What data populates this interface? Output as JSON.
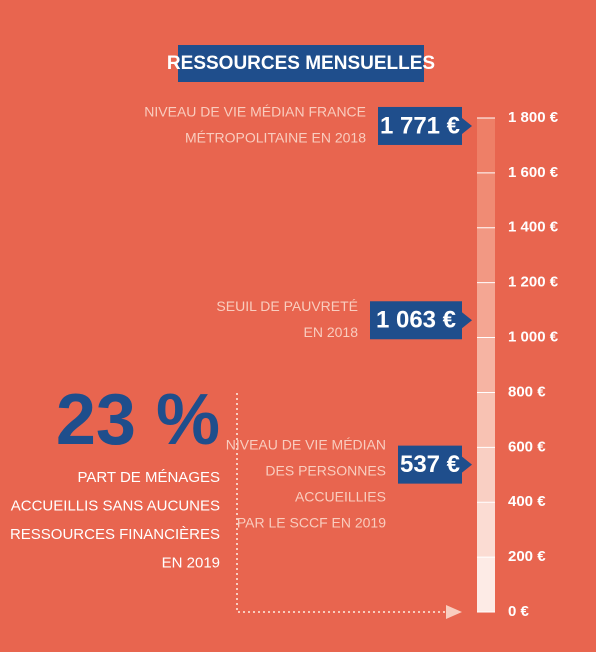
{
  "title": "RESSOURCES MENSUELLES",
  "scale": {
    "ticks": [
      {
        "value": 0,
        "label": "0 €"
      },
      {
        "value": 200,
        "label": "200 €"
      },
      {
        "value": 400,
        "label": "400 €"
      },
      {
        "value": 600,
        "label": "600 €"
      },
      {
        "value": 800,
        "label": "800 €"
      },
      {
        "value": 1000,
        "label": "1 000 €"
      },
      {
        "value": 1200,
        "label": "1 200 €"
      },
      {
        "value": 1400,
        "label": "1 400 €"
      },
      {
        "value": 1600,
        "label": "1 600 €"
      },
      {
        "value": 1800,
        "label": "1 800 €"
      }
    ]
  },
  "markers": [
    {
      "value": 1771,
      "label": "1 771 €",
      "caption": [
        "NIVEAU DE VIE MÉDIAN FRANCE",
        "MÉTROPOLITAINE EN 2018"
      ]
    },
    {
      "value": 1063,
      "label": "1 063 €",
      "caption": [
        "SEUIL DE PAUVRETÉ",
        "EN 2018"
      ]
    },
    {
      "value": 537,
      "label": "537 €",
      "caption": [
        "NIVEAU DE VIE MÉDIAN",
        "DES PERSONNES",
        "ACCUEILLIES",
        "PAR LE SCCF EN 2019"
      ]
    }
  ],
  "callout": {
    "figure": "23 %",
    "text": [
      "PART DE MÉNAGES",
      "ACCUEILLIS SANS AUCUNES",
      "RESSOURCES FINANCIÈRES",
      "EN 2019"
    ]
  }
}
